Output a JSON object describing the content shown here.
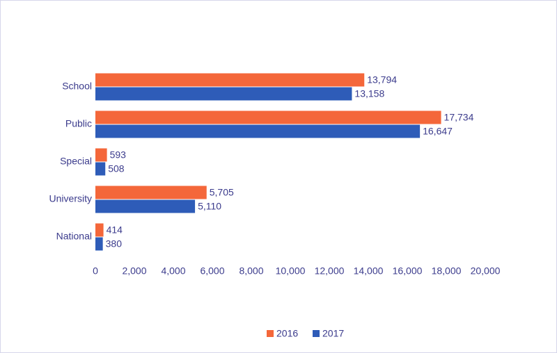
{
  "chart_data": {
    "type": "hbar",
    "categories": [
      "School",
      "Public",
      "Special",
      "University",
      "National"
    ],
    "series": [
      {
        "name": "2016",
        "color": "#f4673a",
        "values": [
          13794,
          17734,
          593,
          5705,
          414
        ],
        "value_labels": [
          "13,794",
          "17,734",
          "593",
          "5,705",
          "414"
        ]
      },
      {
        "name": "2017",
        "color": "#2e5cb8",
        "values": [
          13158,
          16647,
          508,
          5110,
          380
        ],
        "value_labels": [
          "13,158",
          "16,647",
          "508",
          "5,110",
          "380"
        ]
      }
    ],
    "xlim": [
      0,
      20000
    ],
    "xticks": [
      0,
      {
        "value": 2000,
        "label": "2,000"
      },
      {
        "value": 4000,
        "label": "4,000"
      },
      {
        "value": 6000,
        "label": "6,000"
      },
      {
        "value": 8000,
        "label": "8,000"
      },
      {
        "value": 10000,
        "label": "10,000"
      },
      {
        "value": 12000,
        "label": "12,000"
      },
      {
        "value": 14000,
        "label": "14,000"
      },
      {
        "value": 16000,
        "label": "16,000"
      },
      {
        "value": 18000,
        "label": "18,000"
      },
      {
        "value": 20000,
        "label": "20,000"
      }
    ],
    "grid": false,
    "legend": "bottom"
  }
}
